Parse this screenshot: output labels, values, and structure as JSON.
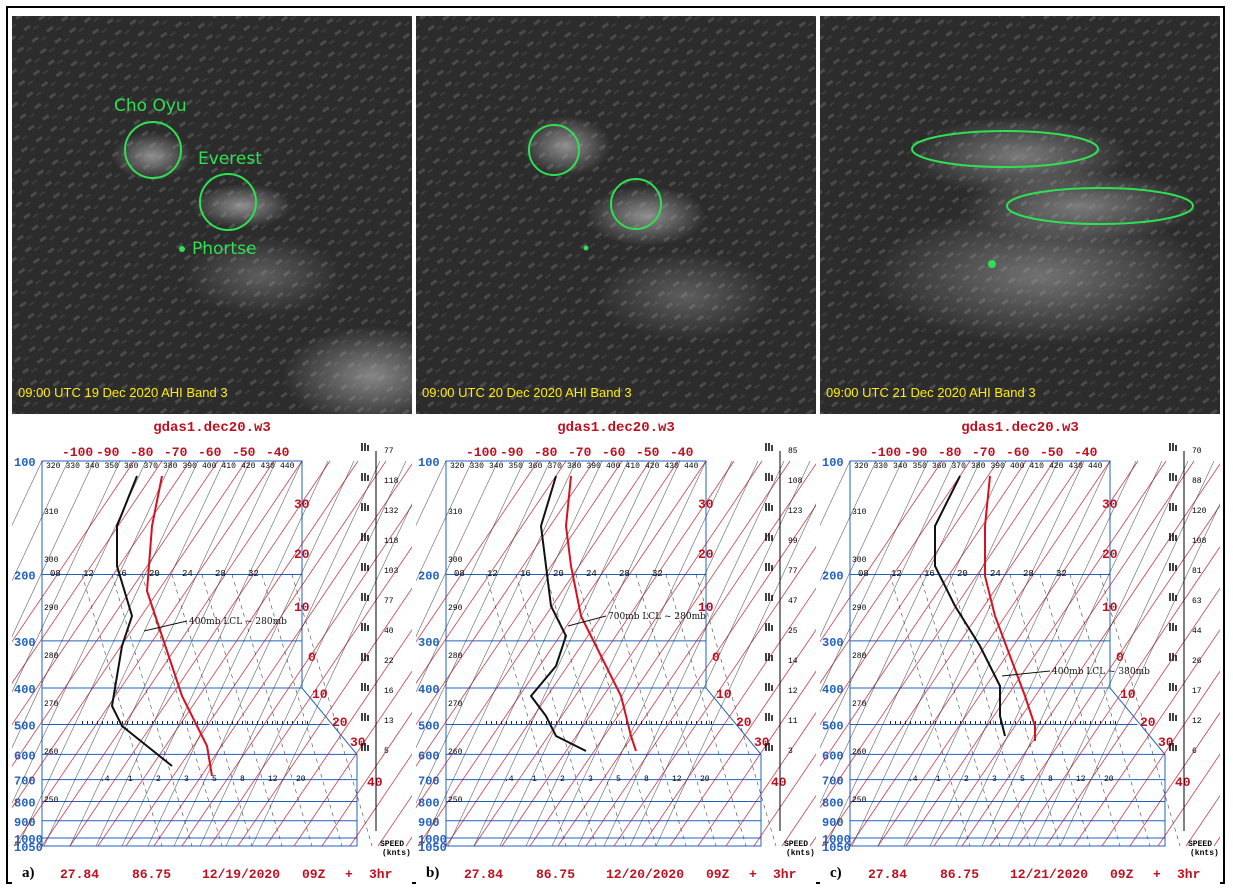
{
  "satellite_panels": [
    {
      "caption": "09:00 UTC 19 Dec 2020 AHI Band 3",
      "labels": {
        "cho_oyu": "Cho Oyu",
        "everest": "Everest",
        "phortse": "Phortse"
      }
    },
    {
      "caption": "09:00 UTC 20 Dec 2020 AHI Band 3"
    },
    {
      "caption": "09:00 UTC 21 Dec 2020 AHI Band 3"
    }
  ],
  "skewt_panels": [
    {
      "letter": "a)",
      "title": "gdas1.dec20.w3",
      "footer": {
        "lat": "27.84",
        "lon": "86.75",
        "date": "12/19/2020",
        "run": "09Z",
        "plus": "+",
        "fcst": "3hr"
      },
      "annotation": "400mb LCL ~ 280mb",
      "wind_speeds": [
        "77",
        "118",
        "132",
        "118",
        "103",
        "77",
        "40",
        "22",
        "16",
        "13",
        "5"
      ]
    },
    {
      "letter": "b)",
      "title": "gdas1.dec20.w3",
      "footer": {
        "lat": "27.84",
        "lon": "86.75",
        "date": "12/20/2020",
        "run": "09Z",
        "plus": "+",
        "fcst": "3hr"
      },
      "annotation": "700mb LCL ~ 280mb",
      "wind_speeds": [
        "85",
        "108",
        "123",
        "99",
        "77",
        "47",
        "25",
        "14",
        "12",
        "11",
        "3"
      ]
    },
    {
      "letter": "c)",
      "title": "gdas1.dec20.w3",
      "footer": {
        "lat": "27.84",
        "lon": "86.75",
        "date": "12/21/2020",
        "run": "09Z",
        "plus": "+",
        "fcst": "3hr"
      },
      "annotation": "400mb LCL ~ 380mb",
      "wind_speeds": [
        "70",
        "88",
        "120",
        "108",
        "81",
        "63",
        "44",
        "26",
        "17",
        "12",
        "6"
      ]
    }
  ],
  "skewt_axes": {
    "top_temps": [
      "-100",
      "-90",
      "-80",
      "-70",
      "-60",
      "-50",
      "-40"
    ],
    "right_temps": [
      "30",
      "20",
      "10",
      "0",
      "10",
      "20",
      "30",
      "40"
    ],
    "pressures": [
      "100",
      "200",
      "300",
      "400",
      "500",
      "600",
      "700",
      "800",
      "900",
      "1000",
      "1050"
    ],
    "theta_top": [
      "320",
      "330",
      "340",
      "350",
      "360",
      "370",
      "380",
      "390",
      "400",
      "410",
      "420",
      "430",
      "440"
    ],
    "theta_left": [
      "310",
      "300",
      "290",
      "280",
      "270",
      "260",
      "250"
    ],
    "mixing_upper": [
      "08",
      "12",
      "16",
      "20",
      "24",
      "28",
      "32"
    ],
    "mixing_lower": [
      ".4",
      "1",
      "2",
      "3",
      "5",
      "8",
      "12",
      "20"
    ],
    "speed_label": [
      "SPEED",
      "(knts)"
    ]
  },
  "colors": {
    "label_green": "#2ee052",
    "caption_yellow": "#ffee00",
    "skew_red": "#c01020",
    "isobar_blue": "#2060c0"
  }
}
